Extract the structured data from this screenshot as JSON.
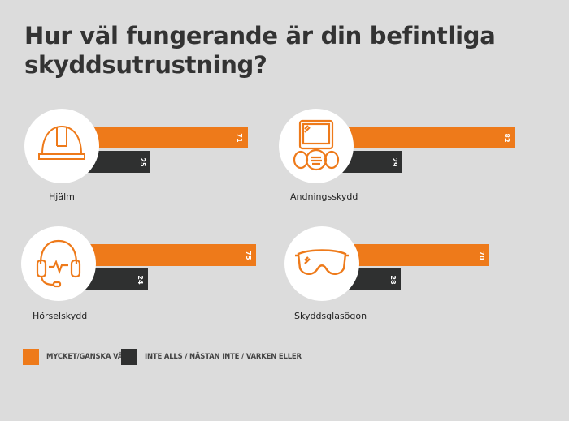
{
  "title": "Hur väl fungerande är din befintliga skyddsutrustning?",
  "chart_data": {
    "type": "bar",
    "title": "Hur väl fungerande är din befintliga skyddsutrustning?",
    "categories": [
      "Hjälm",
      "Andningsskydd",
      "Hörselskydd",
      "Skyddsglasögon"
    ],
    "series": [
      {
        "name": "MYCKET/GANSKA VÄL",
        "color": "#ee7a1a",
        "values": [
          71,
          82,
          75,
          70
        ]
      },
      {
        "name": "INTE ALLS / NÄSTAN INTE / VARKEN ELLER",
        "color": "#2f3030",
        "values": [
          25,
          29,
          24,
          28
        ]
      }
    ],
    "icons": [
      "helmet-icon",
      "respirator-icon",
      "headset-icon",
      "goggles-icon"
    ],
    "legend": "bottom-left",
    "grid": false
  },
  "colors": {
    "background": "#dcdcdc",
    "orange": "#ee7a1a",
    "dark": "#2f3030"
  }
}
